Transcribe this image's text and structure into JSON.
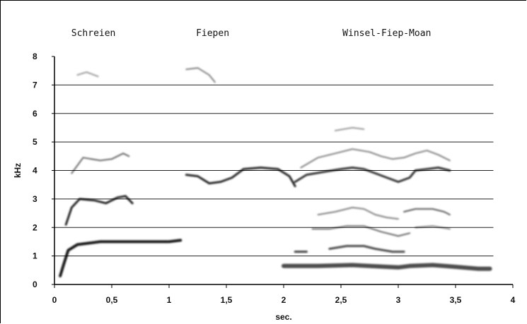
{
  "chart_data": {
    "type": "spectrogram",
    "xlabel": "sec.",
    "ylabel": "kHz",
    "xlim": [
      0,
      4
    ],
    "ylim": [
      0,
      8
    ],
    "x_ticks": [
      "0",
      "0,5",
      "1",
      "1,5",
      "2",
      "2,5",
      "3",
      "3,5",
      "4"
    ],
    "y_ticks": [
      "0",
      "1",
      "2",
      "3",
      "4",
      "5",
      "6",
      "7",
      "8"
    ],
    "gridlines_y": [
      1,
      2,
      3,
      4,
      5,
      6,
      7
    ],
    "grid_x_end": 3.83,
    "annotations": [
      {
        "text": "Schreien",
        "x": 0.34
      },
      {
        "text": "Fiepen",
        "x": 1.38
      },
      {
        "text": "Winsel-Fiep-Moan",
        "x": 2.9
      }
    ],
    "traces": [
      {
        "name": "",
        "color": "#000000",
        "width": 4,
        "opacity": 0.9,
        "points": [
          [
            0.05,
            0.3
          ],
          [
            0.08,
            0.7
          ],
          [
            0.12,
            1.2
          ],
          [
            0.2,
            1.4
          ],
          [
            0.4,
            1.5
          ],
          [
            0.6,
            1.5
          ],
          [
            0.8,
            1.5
          ],
          [
            1.0,
            1.5
          ],
          [
            1.1,
            1.55
          ]
        ]
      },
      {
        "name": "",
        "color": "#000000",
        "width": 3,
        "opacity": 0.85,
        "points": [
          [
            0.1,
            2.1
          ],
          [
            0.15,
            2.7
          ],
          [
            0.22,
            3.0
          ],
          [
            0.35,
            2.95
          ],
          [
            0.45,
            2.85
          ],
          [
            0.55,
            3.05
          ],
          [
            0.62,
            3.1
          ],
          [
            0.68,
            2.85
          ]
        ]
      },
      {
        "name": "",
        "color": "#000000",
        "width": 2,
        "opacity": 0.6,
        "points": [
          [
            0.15,
            3.9
          ],
          [
            0.25,
            4.45
          ],
          [
            0.4,
            4.35
          ],
          [
            0.5,
            4.4
          ],
          [
            0.6,
            4.6
          ],
          [
            0.65,
            4.5
          ]
        ]
      },
      {
        "name": "",
        "color": "#000000",
        "width": 2,
        "opacity": 0.4,
        "points": [
          [
            0.2,
            7.35
          ],
          [
            0.28,
            7.45
          ],
          [
            0.38,
            7.3
          ]
        ]
      },
      {
        "name": "",
        "color": "#000000",
        "width": 2,
        "opacity": 0.5,
        "points": [
          [
            1.15,
            7.55
          ],
          [
            1.25,
            7.6
          ],
          [
            1.35,
            7.35
          ],
          [
            1.4,
            7.1
          ]
        ]
      },
      {
        "name": "",
        "color": "#000000",
        "width": 3,
        "opacity": 0.85,
        "points": [
          [
            1.15,
            3.85
          ],
          [
            1.25,
            3.8
          ],
          [
            1.35,
            3.55
          ],
          [
            1.45,
            3.6
          ],
          [
            1.55,
            3.75
          ],
          [
            1.65,
            4.05
          ],
          [
            1.8,
            4.1
          ],
          [
            1.95,
            4.05
          ],
          [
            2.05,
            3.8
          ],
          [
            2.1,
            3.45
          ]
        ]
      },
      {
        "name": "",
        "color": "#000000",
        "width": 3,
        "opacity": 0.8,
        "points": [
          [
            2.1,
            3.6
          ],
          [
            2.2,
            3.85
          ],
          [
            2.35,
            3.95
          ],
          [
            2.5,
            4.05
          ],
          [
            2.6,
            4.1
          ],
          [
            2.7,
            4.05
          ],
          [
            2.8,
            3.9
          ],
          [
            2.9,
            3.75
          ],
          [
            3.0,
            3.6
          ],
          [
            3.1,
            3.75
          ],
          [
            3.15,
            4.0
          ],
          [
            3.25,
            4.05
          ],
          [
            3.35,
            4.1
          ],
          [
            3.45,
            4.0
          ]
        ]
      },
      {
        "name": "",
        "color": "#000000",
        "width": 2,
        "opacity": 0.5,
        "points": [
          [
            2.15,
            4.1
          ],
          [
            2.3,
            4.45
          ],
          [
            2.45,
            4.6
          ],
          [
            2.6,
            4.75
          ],
          [
            2.75,
            4.65
          ],
          [
            2.85,
            4.5
          ],
          [
            2.95,
            4.4
          ],
          [
            3.05,
            4.45
          ],
          [
            3.15,
            4.6
          ],
          [
            3.25,
            4.7
          ],
          [
            3.35,
            4.55
          ],
          [
            3.45,
            4.35
          ]
        ]
      },
      {
        "name": "",
        "color": "#000000",
        "width": 2,
        "opacity": 0.4,
        "points": [
          [
            2.45,
            5.4
          ],
          [
            2.6,
            5.5
          ],
          [
            2.7,
            5.45
          ]
        ]
      },
      {
        "name": "",
        "color": "#000000",
        "width": 2,
        "opacity": 0.5,
        "points": [
          [
            2.3,
            2.45
          ],
          [
            2.45,
            2.55
          ],
          [
            2.6,
            2.7
          ],
          [
            2.7,
            2.65
          ],
          [
            2.8,
            2.45
          ],
          [
            2.9,
            2.35
          ],
          [
            3.0,
            2.3
          ]
        ]
      },
      {
        "name": "",
        "color": "#000000",
        "width": 2,
        "opacity": 0.65,
        "points": [
          [
            3.05,
            2.55
          ],
          [
            3.15,
            2.65
          ],
          [
            3.3,
            2.65
          ],
          [
            3.4,
            2.55
          ],
          [
            3.45,
            2.45
          ]
        ]
      },
      {
        "name": "",
        "color": "#000000",
        "width": 2,
        "opacity": 0.6,
        "points": [
          [
            2.25,
            1.95
          ],
          [
            2.4,
            1.95
          ],
          [
            2.55,
            2.05
          ],
          [
            2.7,
            2.05
          ],
          [
            2.85,
            1.85
          ],
          [
            3.0,
            1.7
          ],
          [
            3.1,
            1.8
          ]
        ]
      },
      {
        "name": "",
        "color": "#000000",
        "width": 2,
        "opacity": 0.5,
        "points": [
          [
            3.15,
            2.0
          ],
          [
            3.3,
            2.05
          ],
          [
            3.45,
            1.95
          ]
        ]
      },
      {
        "name": "",
        "color": "#000000",
        "width": 3,
        "opacity": 0.75,
        "points": [
          [
            2.1,
            1.15
          ],
          [
            2.2,
            1.15
          ]
        ]
      },
      {
        "name": "",
        "color": "#000000",
        "width": 3,
        "opacity": 0.7,
        "points": [
          [
            2.4,
            1.25
          ],
          [
            2.55,
            1.35
          ],
          [
            2.7,
            1.35
          ],
          [
            2.8,
            1.25
          ],
          [
            2.95,
            1.15
          ],
          [
            3.05,
            1.15
          ]
        ]
      },
      {
        "name": "",
        "color": "#000000",
        "width": 6,
        "opacity": 0.7,
        "points": [
          [
            2.0,
            0.65
          ],
          [
            2.3,
            0.65
          ],
          [
            2.6,
            0.68
          ],
          [
            2.9,
            0.62
          ],
          [
            3.0,
            0.6
          ],
          [
            3.1,
            0.65
          ],
          [
            3.3,
            0.68
          ],
          [
            3.5,
            0.62
          ],
          [
            3.7,
            0.55
          ],
          [
            3.8,
            0.55
          ]
        ]
      }
    ]
  }
}
